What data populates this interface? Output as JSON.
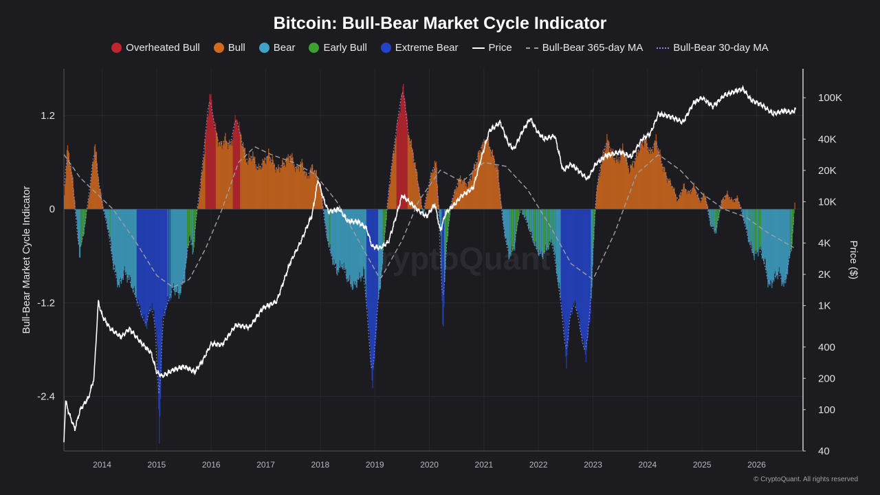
{
  "footer": "© CryptoQuant. All rights reserved",
  "chart_data": {
    "type": "bar",
    "title": "Bitcoin: Bull-Bear Market Cycle Indicator",
    "ylabel": "Bull-Bear Market Cycle Indicator",
    "y2label": "Price ($)",
    "ylim": [
      -3.1,
      1.8
    ],
    "yticks": [
      1.2,
      0,
      -1.2,
      -2.4
    ],
    "y2_log_scale": true,
    "y2lim": [
      40,
      190000
    ],
    "y2ticks": [
      {
        "v": 100000,
        "label": "100K"
      },
      {
        "v": 40000,
        "label": "40K"
      },
      {
        "v": 20000,
        "label": "20K"
      },
      {
        "v": 10000,
        "label": "10K"
      },
      {
        "v": 4000,
        "label": "4K"
      },
      {
        "v": 2000,
        "label": "2K"
      },
      {
        "v": 1000,
        "label": "1K"
      },
      {
        "v": 400,
        "label": "400"
      },
      {
        "v": 200,
        "label": "200"
      },
      {
        "v": 100,
        "label": "100"
      },
      {
        "v": 40,
        "label": "40"
      }
    ],
    "xlim": [
      2013.3,
      2026.85
    ],
    "xticks": [
      2014,
      2015,
      2016,
      2017,
      2018,
      2019,
      2020,
      2021,
      2022,
      2023,
      2024,
      2025,
      2026
    ],
    "legend_position": "top-center",
    "grid": true,
    "watermark": "CryptoQuant",
    "colors": {
      "overheated_bull": "#c0272d",
      "bull": "#d2691e",
      "bear": "#3fa3c7",
      "early_bull": "#3da12f",
      "extreme_bear": "#2444c8",
      "price": "#ffffff",
      "ma365": "#a0a0a0",
      "ma30": "#8a90e8"
    },
    "legend": [
      {
        "label": "Overheated Bull",
        "kind": "dot",
        "color": "#c0272d"
      },
      {
        "label": "Bull",
        "kind": "dot",
        "color": "#d2691e"
      },
      {
        "label": "Bear",
        "kind": "dot",
        "color": "#3fa3c7"
      },
      {
        "label": "Early Bull",
        "kind": "dot",
        "color": "#3da12f"
      },
      {
        "label": "Extreme Bear",
        "kind": "dot",
        "color": "#2444c8"
      },
      {
        "label": "Price",
        "kind": "solid",
        "color": "#ffffff"
      },
      {
        "label": "Bull-Bear 365-day MA",
        "kind": "dashed",
        "color": "#a0a0a0"
      },
      {
        "label": "Bull-Bear 30-day MA",
        "kind": "dotted",
        "color": "#8a90e8"
      }
    ],
    "indicator_series": [
      {
        "x": 2013.3,
        "y": 0.2
      },
      {
        "x": 2013.36,
        "y": 0.8
      },
      {
        "x": 2013.45,
        "y": 0.4
      },
      {
        "x": 2013.5,
        "y": 0.05
      },
      {
        "x": 2013.58,
        "y": -0.6
      },
      {
        "x": 2013.68,
        "y": -0.2
      },
      {
        "x": 2013.78,
        "y": 0.3
      },
      {
        "x": 2013.86,
        "y": 0.85
      },
      {
        "x": 2013.94,
        "y": 0.3
      },
      {
        "x": 2014.05,
        "y": -0.1
      },
      {
        "x": 2014.12,
        "y": -0.3
      },
      {
        "x": 2014.2,
        "y": -0.7
      },
      {
        "x": 2014.3,
        "y": -1.0
      },
      {
        "x": 2014.4,
        "y": -0.8
      },
      {
        "x": 2014.5,
        "y": -0.9
      },
      {
        "x": 2014.6,
        "y": -1.1
      },
      {
        "x": 2014.7,
        "y": -1.3
      },
      {
        "x": 2014.8,
        "y": -1.5
      },
      {
        "x": 2014.9,
        "y": -1.2
      },
      {
        "x": 2015.0,
        "y": -1.6
      },
      {
        "x": 2015.04,
        "y": -3.0
      },
      {
        "x": 2015.1,
        "y": -1.4
      },
      {
        "x": 2015.2,
        "y": -1.2
      },
      {
        "x": 2015.3,
        "y": -1.0
      },
      {
        "x": 2015.4,
        "y": -1.1
      },
      {
        "x": 2015.5,
        "y": -0.9
      },
      {
        "x": 2015.6,
        "y": -0.3
      },
      {
        "x": 2015.66,
        "y": -0.6
      },
      {
        "x": 2015.72,
        "y": -0.1
      },
      {
        "x": 2015.8,
        "y": 0.3
      },
      {
        "x": 2015.9,
        "y": 1.0
      },
      {
        "x": 2015.97,
        "y": 1.5
      },
      {
        "x": 2016.05,
        "y": 1.1
      },
      {
        "x": 2016.15,
        "y": 0.8
      },
      {
        "x": 2016.25,
        "y": 0.9
      },
      {
        "x": 2016.35,
        "y": 0.8
      },
      {
        "x": 2016.45,
        "y": 1.2
      },
      {
        "x": 2016.55,
        "y": 0.9
      },
      {
        "x": 2016.65,
        "y": 0.6
      },
      {
        "x": 2016.75,
        "y": 0.7
      },
      {
        "x": 2016.85,
        "y": 0.5
      },
      {
        "x": 2016.95,
        "y": 0.6
      },
      {
        "x": 2017.05,
        "y": 0.7
      },
      {
        "x": 2017.2,
        "y": 0.5
      },
      {
        "x": 2017.35,
        "y": 0.6
      },
      {
        "x": 2017.45,
        "y": 0.7
      },
      {
        "x": 2017.55,
        "y": 0.5
      },
      {
        "x": 2017.65,
        "y": 0.6
      },
      {
        "x": 2017.75,
        "y": 0.4
      },
      {
        "x": 2017.85,
        "y": 0.55
      },
      {
        "x": 2017.95,
        "y": 0.4
      },
      {
        "x": 2018.02,
        "y": 0.2
      },
      {
        "x": 2018.1,
        "y": -0.3
      },
      {
        "x": 2018.2,
        "y": -0.6
      },
      {
        "x": 2018.3,
        "y": -0.8
      },
      {
        "x": 2018.4,
        "y": -0.7
      },
      {
        "x": 2018.5,
        "y": -0.9
      },
      {
        "x": 2018.6,
        "y": -1.0
      },
      {
        "x": 2018.7,
        "y": -0.9
      },
      {
        "x": 2018.8,
        "y": -0.8
      },
      {
        "x": 2018.9,
        "y": -1.7
      },
      {
        "x": 2018.95,
        "y": -2.3
      },
      {
        "x": 2019.05,
        "y": -1.2
      },
      {
        "x": 2019.12,
        "y": -0.8
      },
      {
        "x": 2019.18,
        "y": -0.3
      },
      {
        "x": 2019.26,
        "y": 0.3
      },
      {
        "x": 2019.35,
        "y": 0.8
      },
      {
        "x": 2019.45,
        "y": 1.3
      },
      {
        "x": 2019.52,
        "y": 1.6
      },
      {
        "x": 2019.6,
        "y": 1.0
      },
      {
        "x": 2019.7,
        "y": 0.7
      },
      {
        "x": 2019.8,
        "y": 0.3
      },
      {
        "x": 2019.88,
        "y": -0.1
      },
      {
        "x": 2019.95,
        "y": 0.2
      },
      {
        "x": 2020.05,
        "y": 0.5
      },
      {
        "x": 2020.12,
        "y": 0.6
      },
      {
        "x": 2020.2,
        "y": -0.4
      },
      {
        "x": 2020.24,
        "y": -1.6
      },
      {
        "x": 2020.3,
        "y": -0.5
      },
      {
        "x": 2020.4,
        "y": 0.1
      },
      {
        "x": 2020.55,
        "y": 0.4
      },
      {
        "x": 2020.7,
        "y": 0.3
      },
      {
        "x": 2020.85,
        "y": 0.6
      },
      {
        "x": 2020.95,
        "y": 0.8
      },
      {
        "x": 2021.05,
        "y": 0.9
      },
      {
        "x": 2021.15,
        "y": 0.7
      },
      {
        "x": 2021.25,
        "y": 0.5
      },
      {
        "x": 2021.35,
        "y": -0.2
      },
      {
        "x": 2021.45,
        "y": -0.6
      },
      {
        "x": 2021.55,
        "y": -0.5
      },
      {
        "x": 2021.65,
        "y": 0.0
      },
      {
        "x": 2021.75,
        "y": -0.1
      },
      {
        "x": 2021.85,
        "y": -0.3
      },
      {
        "x": 2021.95,
        "y": -0.5
      },
      {
        "x": 2022.05,
        "y": -0.6
      },
      {
        "x": 2022.15,
        "y": -0.5
      },
      {
        "x": 2022.25,
        "y": -0.4
      },
      {
        "x": 2022.35,
        "y": -0.9
      },
      {
        "x": 2022.45,
        "y": -1.4
      },
      {
        "x": 2022.5,
        "y": -2.0
      },
      {
        "x": 2022.58,
        "y": -1.3
      },
      {
        "x": 2022.68,
        "y": -1.2
      },
      {
        "x": 2022.78,
        "y": -1.6
      },
      {
        "x": 2022.86,
        "y": -1.9
      },
      {
        "x": 2022.95,
        "y": -1.3
      },
      {
        "x": 2023.0,
        "y": -0.5
      },
      {
        "x": 2023.05,
        "y": 0.2
      },
      {
        "x": 2023.15,
        "y": 0.6
      },
      {
        "x": 2023.25,
        "y": 0.9
      },
      {
        "x": 2023.35,
        "y": 0.7
      },
      {
        "x": 2023.45,
        "y": 0.6
      },
      {
        "x": 2023.55,
        "y": 0.8
      },
      {
        "x": 2023.65,
        "y": 0.5
      },
      {
        "x": 2023.75,
        "y": 0.6
      },
      {
        "x": 2023.85,
        "y": 0.8
      },
      {
        "x": 2023.95,
        "y": 0.9
      },
      {
        "x": 2024.05,
        "y": 0.7
      },
      {
        "x": 2024.15,
        "y": 0.9
      },
      {
        "x": 2024.25,
        "y": 0.6
      },
      {
        "x": 2024.35,
        "y": 0.4
      },
      {
        "x": 2024.45,
        "y": 0.3
      },
      {
        "x": 2024.55,
        "y": 0.1
      },
      {
        "x": 2024.65,
        "y": 0.3
      },
      {
        "x": 2024.75,
        "y": 0.2
      },
      {
        "x": 2024.85,
        "y": 0.3
      },
      {
        "x": 2024.95,
        "y": 0.1
      },
      {
        "x": 2025.05,
        "y": 0.2
      },
      {
        "x": 2025.15,
        "y": -0.2
      },
      {
        "x": 2025.25,
        "y": -0.3
      },
      {
        "x": 2025.35,
        "y": 0.1
      },
      {
        "x": 2025.45,
        "y": 0.2
      },
      {
        "x": 2025.55,
        "y": 0.1
      },
      {
        "x": 2025.65,
        "y": 0.15
      },
      {
        "x": 2025.75,
        "y": -0.1
      },
      {
        "x": 2025.85,
        "y": -0.4
      },
      {
        "x": 2025.95,
        "y": -0.6
      },
      {
        "x": 2026.05,
        "y": -0.5
      },
      {
        "x": 2026.15,
        "y": -0.7
      },
      {
        "x": 2026.22,
        "y": -1.0
      },
      {
        "x": 2026.3,
        "y": -0.9
      },
      {
        "x": 2026.4,
        "y": -0.8
      },
      {
        "x": 2026.5,
        "y": -1.0
      },
      {
        "x": 2026.58,
        "y": -0.7
      },
      {
        "x": 2026.65,
        "y": -0.4
      },
      {
        "x": 2026.7,
        "y": 0.15
      }
    ],
    "ma365_series": [
      {
        "x": 2013.3,
        "y": 0.7
      },
      {
        "x": 2013.6,
        "y": 0.4
      },
      {
        "x": 2013.9,
        "y": 0.2
      },
      {
        "x": 2014.2,
        "y": 0.0
      },
      {
        "x": 2014.6,
        "y": -0.4
      },
      {
        "x": 2015.0,
        "y": -0.85
      },
      {
        "x": 2015.3,
        "y": -1.0
      },
      {
        "x": 2015.6,
        "y": -0.9
      },
      {
        "x": 2015.9,
        "y": -0.5
      },
      {
        "x": 2016.2,
        "y": 0.0
      },
      {
        "x": 2016.5,
        "y": 0.6
      },
      {
        "x": 2016.8,
        "y": 0.8
      },
      {
        "x": 2017.1,
        "y": 0.7
      },
      {
        "x": 2017.5,
        "y": 0.6
      },
      {
        "x": 2017.9,
        "y": 0.45
      },
      {
        "x": 2018.3,
        "y": 0.1
      },
      {
        "x": 2018.7,
        "y": -0.4
      },
      {
        "x": 2019.1,
        "y": -0.9
      },
      {
        "x": 2019.5,
        "y": -0.4
      },
      {
        "x": 2019.8,
        "y": 0.1
      },
      {
        "x": 2020.2,
        "y": 0.5
      },
      {
        "x": 2020.6,
        "y": 0.35
      },
      {
        "x": 2021.0,
        "y": 0.6
      },
      {
        "x": 2021.4,
        "y": 0.55
      },
      {
        "x": 2021.8,
        "y": 0.25
      },
      {
        "x": 2022.2,
        "y": -0.2
      },
      {
        "x": 2022.6,
        "y": -0.7
      },
      {
        "x": 2023.0,
        "y": -0.9
      },
      {
        "x": 2023.4,
        "y": -0.3
      },
      {
        "x": 2023.8,
        "y": 0.45
      },
      {
        "x": 2024.2,
        "y": 0.7
      },
      {
        "x": 2024.6,
        "y": 0.5
      },
      {
        "x": 2025.0,
        "y": 0.2
      },
      {
        "x": 2025.4,
        "y": 0.0
      },
      {
        "x": 2025.8,
        "y": -0.1
      },
      {
        "x": 2026.2,
        "y": -0.3
      },
      {
        "x": 2026.7,
        "y": -0.5
      }
    ],
    "price_series": [
      {
        "x": 2013.3,
        "y": 50
      },
      {
        "x": 2013.33,
        "y": 120
      },
      {
        "x": 2013.4,
        "y": 90
      },
      {
        "x": 2013.5,
        "y": 65
      },
      {
        "x": 2013.6,
        "y": 100
      },
      {
        "x": 2013.75,
        "y": 130
      },
      {
        "x": 2013.85,
        "y": 200
      },
      {
        "x": 2013.93,
        "y": 1100
      },
      {
        "x": 2014.0,
        "y": 800
      },
      {
        "x": 2014.15,
        "y": 600
      },
      {
        "x": 2014.35,
        "y": 500
      },
      {
        "x": 2014.5,
        "y": 600
      },
      {
        "x": 2014.7,
        "y": 450
      },
      {
        "x": 2014.9,
        "y": 350
      },
      {
        "x": 2015.0,
        "y": 230
      },
      {
        "x": 2015.1,
        "y": 210
      },
      {
        "x": 2015.3,
        "y": 240
      },
      {
        "x": 2015.5,
        "y": 260
      },
      {
        "x": 2015.7,
        "y": 230
      },
      {
        "x": 2015.85,
        "y": 300
      },
      {
        "x": 2016.0,
        "y": 430
      },
      {
        "x": 2016.2,
        "y": 420
      },
      {
        "x": 2016.45,
        "y": 650
      },
      {
        "x": 2016.7,
        "y": 620
      },
      {
        "x": 2016.95,
        "y": 950
      },
      {
        "x": 2017.2,
        "y": 1100
      },
      {
        "x": 2017.45,
        "y": 2600
      },
      {
        "x": 2017.65,
        "y": 4200
      },
      {
        "x": 2017.85,
        "y": 7500
      },
      {
        "x": 2017.96,
        "y": 16500
      },
      {
        "x": 2018.05,
        "y": 11000
      },
      {
        "x": 2018.15,
        "y": 8000
      },
      {
        "x": 2018.35,
        "y": 8500
      },
      {
        "x": 2018.5,
        "y": 6500
      },
      {
        "x": 2018.7,
        "y": 6400
      },
      {
        "x": 2018.85,
        "y": 5500
      },
      {
        "x": 2018.95,
        "y": 3700
      },
      {
        "x": 2019.1,
        "y": 3600
      },
      {
        "x": 2019.25,
        "y": 4100
      },
      {
        "x": 2019.4,
        "y": 7500
      },
      {
        "x": 2019.5,
        "y": 11500
      },
      {
        "x": 2019.65,
        "y": 9800
      },
      {
        "x": 2019.8,
        "y": 8200
      },
      {
        "x": 2019.95,
        "y": 7200
      },
      {
        "x": 2020.1,
        "y": 9500
      },
      {
        "x": 2020.2,
        "y": 5200
      },
      {
        "x": 2020.3,
        "y": 7800
      },
      {
        "x": 2020.45,
        "y": 9300
      },
      {
        "x": 2020.6,
        "y": 11500
      },
      {
        "x": 2020.8,
        "y": 13500
      },
      {
        "x": 2020.95,
        "y": 26000
      },
      {
        "x": 2021.1,
        "y": 48000
      },
      {
        "x": 2021.3,
        "y": 58000
      },
      {
        "x": 2021.45,
        "y": 36000
      },
      {
        "x": 2021.55,
        "y": 32000
      },
      {
        "x": 2021.7,
        "y": 47000
      },
      {
        "x": 2021.85,
        "y": 63000
      },
      {
        "x": 2021.98,
        "y": 47000
      },
      {
        "x": 2022.1,
        "y": 40000
      },
      {
        "x": 2022.3,
        "y": 43000
      },
      {
        "x": 2022.45,
        "y": 20000
      },
      {
        "x": 2022.6,
        "y": 23000
      },
      {
        "x": 2022.75,
        "y": 19500
      },
      {
        "x": 2022.9,
        "y": 16500
      },
      {
        "x": 2023.05,
        "y": 23000
      },
      {
        "x": 2023.25,
        "y": 28000
      },
      {
        "x": 2023.5,
        "y": 30000
      },
      {
        "x": 2023.7,
        "y": 27000
      },
      {
        "x": 2023.9,
        "y": 40000
      },
      {
        "x": 2024.05,
        "y": 45000
      },
      {
        "x": 2024.2,
        "y": 70000
      },
      {
        "x": 2024.45,
        "y": 65000
      },
      {
        "x": 2024.65,
        "y": 58000
      },
      {
        "x": 2024.85,
        "y": 90000
      },
      {
        "x": 2025.0,
        "y": 100000
      },
      {
        "x": 2025.2,
        "y": 82000
      },
      {
        "x": 2025.4,
        "y": 105000
      },
      {
        "x": 2025.6,
        "y": 115000
      },
      {
        "x": 2025.75,
        "y": 122000
      },
      {
        "x": 2025.9,
        "y": 95000
      },
      {
        "x": 2026.1,
        "y": 85000
      },
      {
        "x": 2026.3,
        "y": 70000
      },
      {
        "x": 2026.5,
        "y": 75000
      },
      {
        "x": 2026.65,
        "y": 72000
      },
      {
        "x": 2026.72,
        "y": 78000
      }
    ]
  }
}
